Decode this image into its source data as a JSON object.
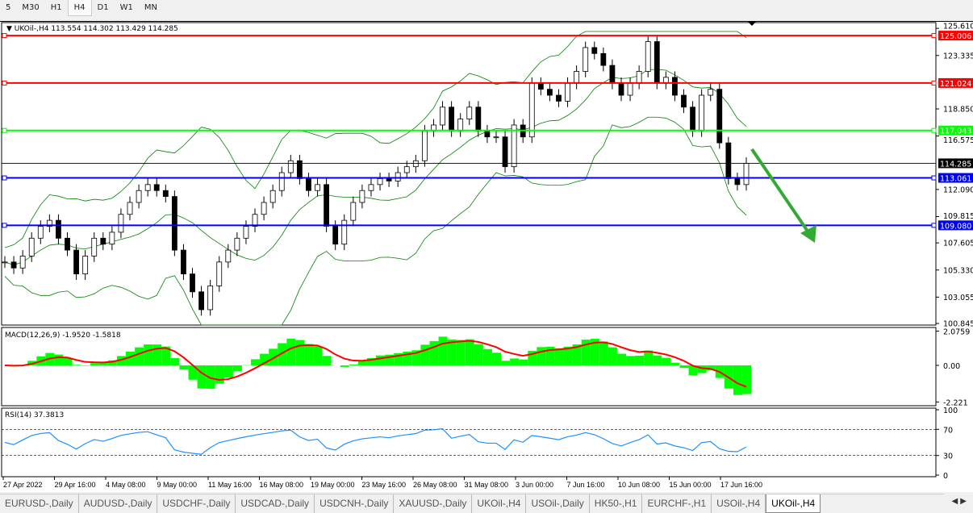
{
  "timeframes": [
    "5",
    "M30",
    "H1",
    "H4",
    "D1",
    "W1",
    "MN"
  ],
  "selected_timeframe": "H4",
  "chart_data": {
    "type": "candlestick",
    "header": "UKOil-,H4  113.554 114.302 113.429 114.285",
    "ylim": [
      100.71,
      125.35
    ],
    "yticks": [
      "125.610",
      "123.335",
      "118.850",
      "116.575",
      "112.090",
      "109.815",
      "107.605",
      "105.330",
      "103.055",
      "100.845"
    ],
    "ytick_values": [
      125.61,
      123.335,
      118.85,
      116.575,
      112.09,
      109.815,
      107.605,
      105.33,
      103.055,
      100.845
    ],
    "xticks": [
      "27 Apr 2022",
      "29 Apr 16:00",
      "4 May 08:00",
      "9 May 00:00",
      "11 May 16:00",
      "16 May 08:00",
      "19 May 00:00",
      "23 May 16:00",
      "26 May 08:00",
      "31 May 08:00",
      "3 Jun 00:00",
      "7 Jun 16:00",
      "10 Jun 08:00",
      "15 Jun 00:00",
      "17 Jun 16:00"
    ],
    "closes": [
      106,
      105.5,
      106.5,
      108,
      109,
      109.5,
      108,
      107,
      105,
      106.5,
      108,
      107.5,
      108.5,
      110,
      111,
      112,
      112.5,
      112,
      111.5,
      107,
      105,
      103.5,
      102,
      104,
      106,
      107,
      108,
      109,
      110,
      111,
      112,
      113.5,
      114.5,
      113,
      112,
      112.5,
      109,
      107.5,
      109.5,
      111,
      112,
      112.5,
      113,
      112.8,
      113.5,
      114,
      114.5,
      117,
      117.5,
      119,
      117,
      118,
      119,
      117,
      116.5,
      116.5,
      114,
      117.5,
      116.5,
      121,
      120.5,
      120,
      119.5,
      121,
      122,
      124,
      123.5,
      122.5,
      121,
      120,
      121,
      122,
      124.5,
      121,
      121.5,
      120,
      119,
      117,
      120,
      120.5,
      116,
      113,
      112.5,
      114.285
    ],
    "current_price": "114.285",
    "levels": [
      {
        "value": "125.006",
        "color": "#ff0000"
      },
      {
        "value": "121.024",
        "color": "#ff0000"
      },
      {
        "value": "117.043",
        "color": "#00ff00"
      },
      {
        "value": "113.061",
        "color": "#0000ff"
      },
      {
        "value": "109.080",
        "color": "#0000ff"
      }
    ],
    "bollinger_color": "#008000",
    "arrow": {
      "direction": "down",
      "color": "#33aa33"
    },
    "macd": {
      "header": "MACD(12,26,9) -1.9520 -1.5818",
      "yticks": [
        "2.0759",
        "0.00",
        "-2.221"
      ],
      "ylim": [
        -2.35,
        2.2
      ],
      "histogram_color": "#00ff00",
      "signal_color": "#ff0000"
    },
    "rsi": {
      "header": "RSI(14) 37.3813",
      "yticks": [
        "100",
        "70",
        "30",
        "0"
      ],
      "levels": [
        70,
        30
      ],
      "color": "#1e90ff"
    }
  },
  "tabs": [
    "EURUSD-,Daily",
    "AUDUSD-,Daily",
    "USDCHF-,Daily",
    "USDCAD-,Daily",
    "USDCNH-,Daily",
    "XAUUSD-,Daily",
    "UKOil-,H4",
    "USOil-,Daily",
    "HK50-,H1",
    "EURCHF-,H1",
    "USOil-,H4",
    "UKOil-,H4"
  ],
  "active_tab": 11
}
